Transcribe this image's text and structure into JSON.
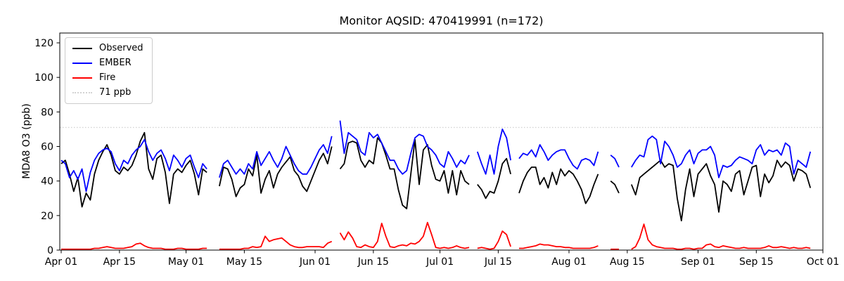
{
  "chart_data": {
    "type": "line",
    "title": "Monitor AQSID: 470419991 (n=172)",
    "monitor_aqsid": "470419991",
    "n_points": 172,
    "ylabel": "MDA8 O3 (ppb)",
    "xlabel": "",
    "ylim": [
      0,
      125.7
    ],
    "yticks": [
      0,
      20,
      40,
      60,
      80,
      100,
      120
    ],
    "x_range_days": 183,
    "xticks": [
      {
        "day": 0,
        "label": "Apr 01"
      },
      {
        "day": 14,
        "label": "Apr 15"
      },
      {
        "day": 30,
        "label": "May 01"
      },
      {
        "day": 44,
        "label": "May 15"
      },
      {
        "day": 61,
        "label": "Jun 01"
      },
      {
        "day": 75,
        "label": "Jun 15"
      },
      {
        "day": 91,
        "label": "Jul 01"
      },
      {
        "day": 105,
        "label": "Jul 15"
      },
      {
        "day": 122,
        "label": "Aug 01"
      },
      {
        "day": 136,
        "label": "Aug 15"
      },
      {
        "day": 153,
        "label": "Sep 01"
      },
      {
        "day": 167,
        "label": "Sep 15"
      },
      {
        "day": 183,
        "label": "Oct 01"
      }
    ],
    "grid": false,
    "legend_position": "upper left",
    "legend": [
      {
        "label": "Observed",
        "color": "#000000",
        "dash": "solid"
      },
      {
        "label": "EMBER",
        "color": "#0000ff",
        "dash": "solid"
      },
      {
        "label": "Fire",
        "color": "#ff0000",
        "dash": "solid"
      },
      {
        "label": "71 ppb",
        "color": "#d3d3d3",
        "dash": "dotted"
      }
    ],
    "threshold": {
      "value": 71,
      "label": "71 ppb",
      "color": "#d3d3d3",
      "style": "dotted"
    },
    "date_format": "MM-DD",
    "dates": [
      "04-01",
      "04-02",
      "04-03",
      "04-04",
      "04-05",
      "04-06",
      "04-07",
      "04-08",
      "04-09",
      "04-10",
      "04-11",
      "04-12",
      "04-13",
      "04-14",
      "04-15",
      "04-16",
      "04-17",
      "04-18",
      "04-19",
      "04-20",
      "04-21",
      "04-22",
      "04-23",
      "04-24",
      "04-25",
      "04-26",
      "04-27",
      "04-28",
      "04-29",
      "04-30",
      "05-01",
      "05-02",
      "05-03",
      "05-04",
      "05-05",
      "05-06",
      "05-07",
      "05-08",
      "05-09",
      "05-10",
      "05-11",
      "05-12",
      "05-13",
      "05-14",
      "05-15",
      "05-16",
      "05-17",
      "05-18",
      "05-19",
      "05-20",
      "05-21",
      "05-22",
      "05-23",
      "05-24",
      "05-25",
      "05-26",
      "05-27",
      "05-28",
      "05-29",
      "05-30",
      "05-31",
      "06-01",
      "06-02",
      "06-03",
      "06-04",
      "06-05",
      "06-06",
      "06-07",
      "06-08",
      "06-09",
      "06-10",
      "06-11",
      "06-12",
      "06-13",
      "06-14",
      "06-15",
      "06-16",
      "06-17",
      "06-18",
      "06-19",
      "06-20",
      "06-21",
      "06-22",
      "06-23",
      "06-24",
      "06-25",
      "06-26",
      "06-27",
      "06-28",
      "06-29",
      "06-30",
      "07-01",
      "07-02",
      "07-03",
      "07-04",
      "07-05",
      "07-06",
      "07-07",
      "07-08",
      "07-09",
      "07-10",
      "07-11",
      "07-12",
      "07-13",
      "07-14",
      "07-15",
      "07-16",
      "07-17",
      "07-18",
      "07-19",
      "07-20",
      "07-21",
      "07-22",
      "07-23",
      "07-24",
      "07-25",
      "07-26",
      "07-27",
      "07-28",
      "07-29",
      "07-30",
      "07-31",
      "08-01",
      "08-02",
      "08-03",
      "08-04",
      "08-05",
      "08-06",
      "08-07",
      "08-08",
      "08-09",
      "08-10",
      "08-11",
      "08-12",
      "08-13",
      "08-14",
      "08-15",
      "08-16",
      "08-17",
      "08-18",
      "08-19",
      "08-20",
      "08-21",
      "08-22",
      "08-23",
      "08-24",
      "08-25",
      "08-26",
      "08-27",
      "08-28",
      "08-29",
      "08-30",
      "08-31",
      "09-01",
      "09-02",
      "09-03",
      "09-04",
      "09-05",
      "09-06",
      "09-07",
      "09-08",
      "09-09",
      "09-10",
      "09-11",
      "09-12",
      "09-13",
      "09-14",
      "09-15",
      "09-16",
      "09-17",
      "09-18",
      "09-19",
      "09-20",
      "09-21",
      "09-22",
      "09-23",
      "09-24",
      "09-25",
      "09-26",
      "09-27",
      "09-28"
    ],
    "series": [
      {
        "name": "Observed",
        "color": "#000000",
        "values": [
          50,
          52,
          44,
          34,
          42,
          25,
          33,
          29,
          44,
          52,
          57,
          61,
          55,
          46,
          44,
          48,
          46,
          49,
          55,
          63,
          68,
          47,
          41,
          53,
          55,
          45,
          27,
          44,
          47,
          45,
          49,
          52,
          44,
          32,
          47,
          45,
          null,
          null,
          37,
          48,
          47,
          41,
          31,
          36,
          38,
          47,
          43,
          55,
          33,
          41,
          46,
          36,
          44,
          48,
          51,
          54,
          46,
          43,
          37,
          34,
          40,
          46,
          52,
          56,
          50,
          60,
          null,
          47,
          50,
          62,
          63,
          62,
          52,
          48,
          52,
          50,
          65,
          62,
          55,
          47,
          47,
          35,
          26,
          24,
          44,
          64,
          38,
          58,
          61,
          49,
          41,
          40,
          46,
          33,
          46,
          32,
          46,
          40,
          38,
          null,
          38,
          35,
          30,
          34,
          33,
          40,
          50,
          53,
          44,
          null,
          33,
          40,
          45,
          48,
          48,
          38,
          42,
          36,
          45,
          38,
          47,
          43,
          46,
          44,
          40,
          35,
          27,
          31,
          38,
          44,
          null,
          null,
          40,
          38,
          33,
          null,
          null,
          38,
          32,
          42,
          44,
          46,
          48,
          50,
          52,
          48,
          50,
          49,
          30,
          17,
          35,
          47,
          31,
          44,
          47,
          50,
          43,
          38,
          22,
          40,
          38,
          34,
          44,
          46,
          32,
          40,
          48,
          49,
          31,
          44,
          39,
          43,
          52,
          48,
          51,
          49,
          40,
          47,
          46,
          44,
          36
        ]
      },
      {
        "name": "EMBER",
        "color": "#0000ff",
        "values": [
          52,
          50,
          42,
          46,
          41,
          47,
          34,
          45,
          52,
          56,
          58,
          59,
          57,
          50,
          46,
          52,
          50,
          55,
          58,
          60,
          64,
          57,
          52,
          56,
          58,
          53,
          46,
          55,
          52,
          48,
          53,
          55,
          48,
          42,
          50,
          47,
          null,
          null,
          42,
          50,
          52,
          48,
          44,
          47,
          44,
          50,
          47,
          57,
          49,
          53,
          57,
          52,
          48,
          53,
          60,
          55,
          50,
          46,
          44,
          44,
          48,
          53,
          58,
          61,
          56,
          66,
          null,
          75,
          56,
          68,
          66,
          64,
          57,
          55,
          68,
          65,
          67,
          62,
          57,
          52,
          52,
          47,
          44,
          46,
          56,
          65,
          67,
          66,
          60,
          58,
          55,
          50,
          48,
          57,
          53,
          48,
          52,
          50,
          55,
          null,
          57,
          50,
          44,
          55,
          44,
          60,
          70,
          65,
          52,
          null,
          53,
          56,
          55,
          58,
          54,
          61,
          57,
          52,
          55,
          57,
          58,
          58,
          53,
          49,
          47,
          52,
          53,
          52,
          49,
          57,
          null,
          null,
          55,
          53,
          48,
          null,
          null,
          48,
          52,
          55,
          54,
          64,
          66,
          64,
          50,
          63,
          60,
          55,
          48,
          50,
          55,
          58,
          50,
          56,
          58,
          58,
          60,
          55,
          42,
          49,
          48,
          49,
          52,
          54,
          53,
          52,
          50,
          58,
          61,
          55,
          58,
          57,
          58,
          55,
          62,
          60,
          44,
          52,
          50,
          48,
          57
        ]
      },
      {
        "name": "Fire",
        "color": "#ff0000",
        "values": [
          0.5,
          0.5,
          0.5,
          0.5,
          0.5,
          0.5,
          0.5,
          0.5,
          1,
          1,
          1.5,
          2,
          1.5,
          1,
          1,
          1,
          1.5,
          2,
          3.5,
          4,
          2.5,
          1.5,
          1,
          1,
          1,
          0.5,
          0.5,
          0.5,
          1,
          1,
          0.5,
          0.5,
          0.5,
          0.5,
          1,
          1,
          null,
          null,
          0.5,
          0.5,
          0.5,
          0.5,
          0.5,
          0.5,
          1,
          1,
          2,
          1.5,
          2,
          8,
          5,
          6,
          6.5,
          7,
          5,
          3,
          2,
          1.5,
          1.5,
          2,
          2,
          2,
          2,
          1.5,
          4,
          5,
          null,
          10,
          6,
          10.5,
          7,
          2,
          1.5,
          3,
          2,
          1.5,
          5,
          15.5,
          8,
          2,
          1.5,
          2.5,
          3,
          2.5,
          4,
          3.5,
          5,
          8,
          16,
          9,
          1.5,
          1,
          1.5,
          1,
          1.5,
          2.5,
          1.5,
          1,
          1.5,
          null,
          1,
          1.5,
          1,
          0.5,
          1,
          5,
          11,
          9,
          2,
          null,
          1,
          1,
          1.5,
          2,
          2.5,
          3.5,
          3,
          3,
          2.5,
          2,
          2,
          1.5,
          1.5,
          1,
          1,
          1,
          1,
          1,
          1.5,
          2.5,
          null,
          null,
          0.5,
          0.5,
          0.5,
          null,
          null,
          0.5,
          2,
          7,
          15,
          6,
          3,
          2,
          1.5,
          1,
          1,
          1,
          0.5,
          0.5,
          1,
          1,
          0.5,
          1,
          1,
          3,
          3.5,
          2,
          1.5,
          2.5,
          2,
          1.5,
          1,
          1,
          1.5,
          1,
          1,
          1,
          1,
          1.5,
          2.5,
          1.5,
          1.5,
          2,
          1.5,
          1,
          1.5,
          1,
          1,
          1.5,
          1
        ]
      }
    ]
  }
}
